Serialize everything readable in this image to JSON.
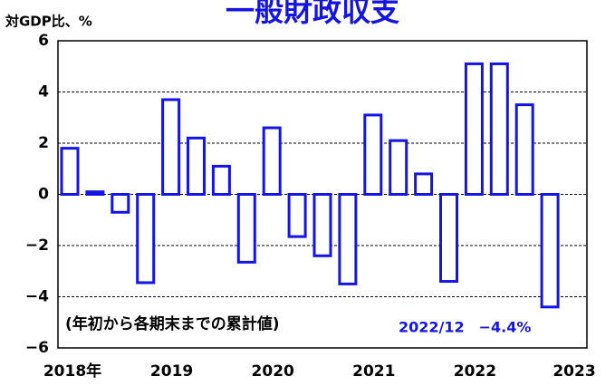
{
  "chart_data": {
    "type": "bar",
    "title": "一般財政収支",
    "y_label": "対GDP比、%",
    "categories": [
      "2018年",
      null,
      null,
      null,
      "2019",
      null,
      null,
      null,
      "2020",
      null,
      null,
      null,
      "2021",
      null,
      null,
      null,
      "2022",
      null,
      null,
      null
    ],
    "end_label": "2023",
    "values": [
      1.8,
      0.1,
      -0.7,
      -3.45,
      3.7,
      2.2,
      1.1,
      -2.65,
      2.6,
      -1.65,
      -2.4,
      -3.5,
      3.1,
      2.1,
      0.8,
      -3.4,
      5.1,
      5.1,
      3.5,
      -4.4
    ],
    "color": "#1414e6",
    "ylim": [
      -6,
      6
    ],
    "yticks": [
      {
        "value": -6,
        "label": "−6"
      },
      {
        "value": -4,
        "label": "−4"
      },
      {
        "value": -2,
        "label": "−2"
      },
      0,
      2,
      4,
      6
    ],
    "grid": true,
    "annotations": [
      "(年初から各期末までの累計値)",
      "2022/12　−4.4%"
    ]
  }
}
